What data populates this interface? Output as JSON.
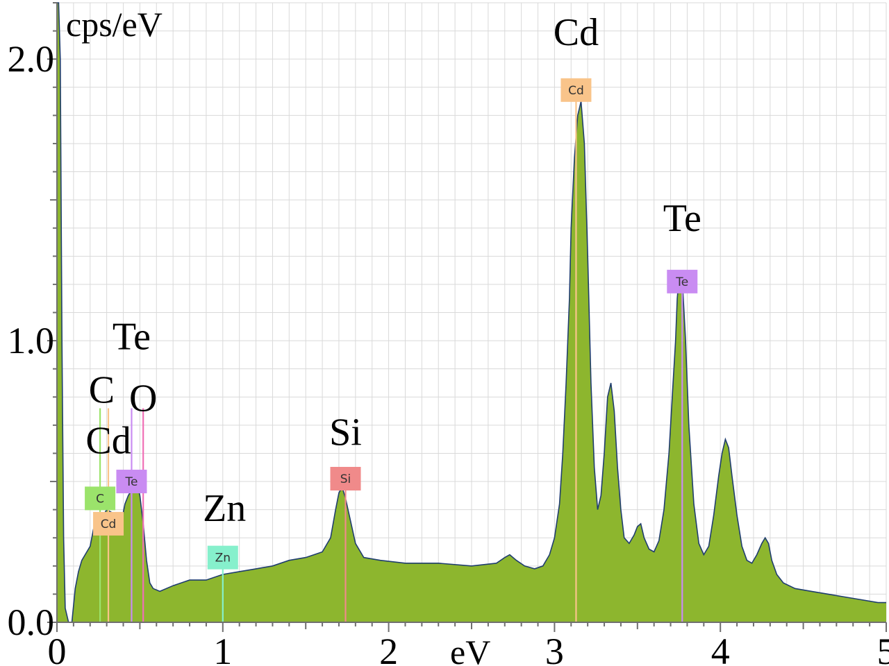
{
  "chart_data": {
    "type": "area",
    "title": "",
    "ylabel": "cps/eV",
    "xlabel": "eV",
    "xlim": [
      0,
      5
    ],
    "ylim": [
      0,
      2.2
    ],
    "x_ticks": [
      0,
      1,
      2,
      3,
      4,
      5
    ],
    "x_tick_labels": [
      "0",
      "1",
      "2",
      "3",
      "4",
      "5"
    ],
    "y_ticks": [
      0.0,
      1.0,
      2.0
    ],
    "y_tick_labels": [
      "0.0",
      "1.0",
      "2.0"
    ],
    "grid": true,
    "colors": {
      "fill": "#8db62e",
      "outline": "#1f3d6e",
      "grid": "#d9d9d9",
      "axis": "#6f6f6f"
    },
    "series": [
      {
        "x": [
          0.0,
          0.01,
          0.02,
          0.03,
          0.04,
          0.05,
          0.07,
          0.09,
          0.11,
          0.13,
          0.15,
          0.18,
          0.2,
          0.22,
          0.25,
          0.28,
          0.3,
          0.33,
          0.36,
          0.38,
          0.41,
          0.43,
          0.46,
          0.48,
          0.5,
          0.52,
          0.54,
          0.56,
          0.58,
          0.62,
          0.7,
          0.8,
          0.9,
          1.0,
          1.1,
          1.2,
          1.3,
          1.4,
          1.5,
          1.55,
          1.6,
          1.65,
          1.68,
          1.7,
          1.72,
          1.74,
          1.77,
          1.8,
          1.85,
          1.95,
          2.1,
          2.3,
          2.5,
          2.65,
          2.7,
          2.73,
          2.77,
          2.82,
          2.88,
          2.93,
          2.97,
          3.0,
          3.03,
          3.05,
          3.07,
          3.09,
          3.1,
          3.12,
          3.14,
          3.16,
          3.18,
          3.2,
          3.22,
          3.24,
          3.26,
          3.28,
          3.3,
          3.32,
          3.34,
          3.36,
          3.38,
          3.4,
          3.42,
          3.45,
          3.48,
          3.5,
          3.52,
          3.54,
          3.57,
          3.6,
          3.63,
          3.66,
          3.69,
          3.71,
          3.73,
          3.74,
          3.75,
          3.76,
          3.77,
          3.79,
          3.81,
          3.84,
          3.87,
          3.9,
          3.93,
          3.96,
          3.99,
          4.01,
          4.03,
          4.05,
          4.07,
          4.1,
          4.13,
          4.16,
          4.19,
          4.22,
          4.25,
          4.27,
          4.29,
          4.31,
          4.34,
          4.38,
          4.45,
          4.55,
          4.65,
          4.75,
          4.85,
          4.95,
          5.0
        ],
        "y": [
          2.2,
          2.2,
          2.0,
          1.0,
          0.3,
          0.05,
          0.0,
          0.0,
          0.12,
          0.18,
          0.22,
          0.25,
          0.27,
          0.33,
          0.35,
          0.38,
          0.4,
          0.39,
          0.35,
          0.33,
          0.42,
          0.45,
          0.48,
          0.5,
          0.45,
          0.35,
          0.22,
          0.14,
          0.12,
          0.11,
          0.13,
          0.15,
          0.15,
          0.17,
          0.18,
          0.19,
          0.2,
          0.22,
          0.23,
          0.24,
          0.25,
          0.3,
          0.4,
          0.46,
          0.48,
          0.44,
          0.36,
          0.28,
          0.23,
          0.22,
          0.21,
          0.21,
          0.2,
          0.21,
          0.23,
          0.24,
          0.22,
          0.2,
          0.19,
          0.2,
          0.24,
          0.3,
          0.42,
          0.6,
          0.85,
          1.15,
          1.4,
          1.65,
          1.8,
          1.85,
          1.7,
          1.3,
          0.85,
          0.55,
          0.4,
          0.45,
          0.6,
          0.8,
          0.85,
          0.75,
          0.55,
          0.4,
          0.3,
          0.28,
          0.31,
          0.34,
          0.35,
          0.3,
          0.26,
          0.25,
          0.29,
          0.4,
          0.6,
          0.8,
          1.0,
          1.15,
          1.22,
          1.25,
          1.22,
          1.0,
          0.7,
          0.42,
          0.28,
          0.24,
          0.27,
          0.38,
          0.52,
          0.6,
          0.65,
          0.62,
          0.52,
          0.38,
          0.27,
          0.22,
          0.21,
          0.24,
          0.28,
          0.3,
          0.28,
          0.22,
          0.17,
          0.14,
          0.12,
          0.11,
          0.1,
          0.09,
          0.08,
          0.07,
          0.07
        ]
      }
    ],
    "annotations": [
      {
        "text": "C",
        "x": 0.27
      },
      {
        "text": "Cd",
        "x": 0.31
      },
      {
        "text": "Te",
        "x": 0.45
      },
      {
        "text": "O",
        "x": 0.52
      },
      {
        "text": "Zn",
        "x": 1.01
      },
      {
        "text": "Si",
        "x": 1.74
      },
      {
        "text": "Cd",
        "x": 3.13
      },
      {
        "text": "Te",
        "x": 3.77
      }
    ],
    "markers": [
      {
        "label": "C",
        "x": 0.26,
        "color": "#9be36b"
      },
      {
        "label": "Cd",
        "x": 0.31,
        "color": "#f9c48a"
      },
      {
        "label": "Te",
        "x": 0.45,
        "color": "#c98cf2"
      },
      {
        "label": "",
        "x": 0.52,
        "color": "#f06fb6"
      },
      {
        "label": "Zn",
        "x": 1.0,
        "color": "#86f0cc"
      },
      {
        "label": "Si",
        "x": 1.74,
        "color": "#f08a8a"
      },
      {
        "label": "Cd",
        "x": 3.13,
        "color": "#f9c48a"
      },
      {
        "label": "Te",
        "x": 3.77,
        "color": "#c98cf2"
      }
    ]
  }
}
